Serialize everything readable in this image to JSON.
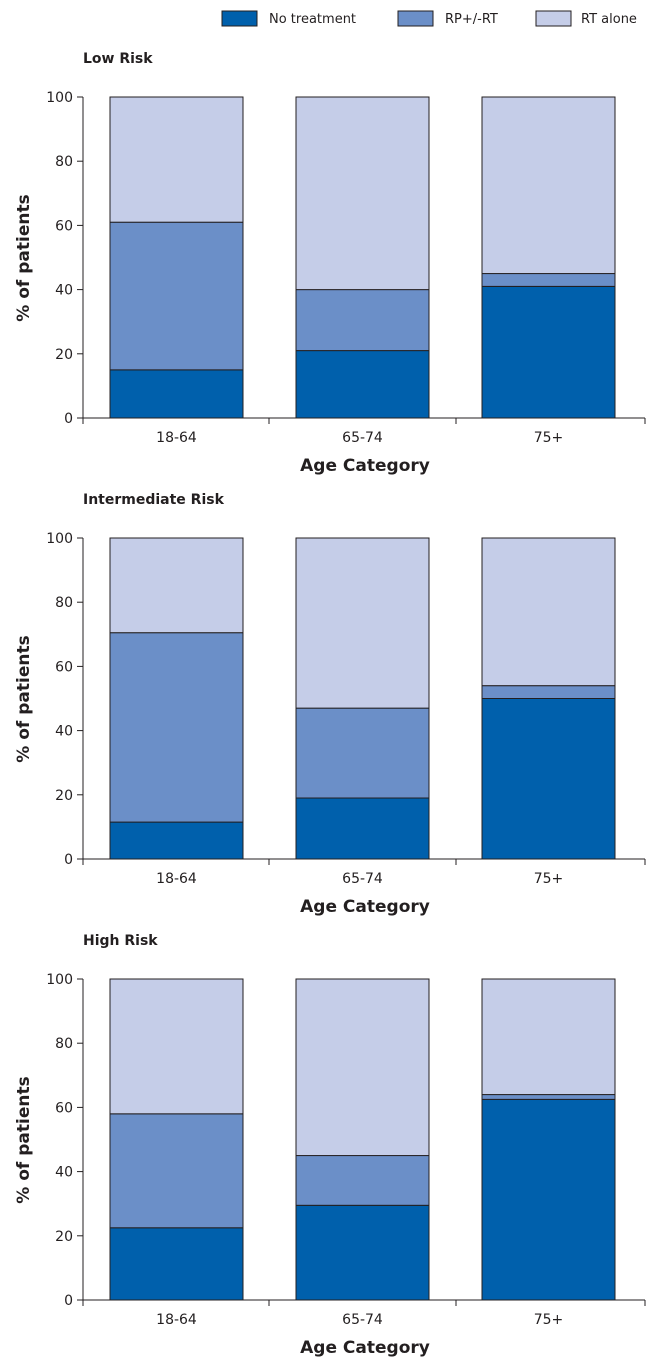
{
  "legend": [
    {
      "label": "No treatment",
      "color": "#0060ac"
    },
    {
      "label": "RP+/-RT",
      "color": "#6b8fc8"
    },
    {
      "label": "RT alone",
      "color": "#c5cde8"
    }
  ],
  "chart_data": [
    {
      "type": "bar",
      "stacked": true,
      "title": "Low Risk",
      "xlabel": "Age Category",
      "ylabel": "% of patients",
      "categories": [
        "18-64",
        "65-74",
        "75+"
      ],
      "ylim": [
        0,
        100
      ],
      "yticks": [
        0,
        20,
        40,
        60,
        80,
        100
      ],
      "series": [
        {
          "name": "No treatment",
          "values": [
            15,
            21,
            41
          ]
        },
        {
          "name": "RP+/-RT",
          "values": [
            46,
            19,
            4
          ]
        },
        {
          "name": "RT alone",
          "values": [
            39,
            60,
            55
          ]
        }
      ]
    },
    {
      "type": "bar",
      "stacked": true,
      "title": "Intermediate Risk",
      "xlabel": "Age Category",
      "ylabel": "% of patients",
      "categories": [
        "18-64",
        "65-74",
        "75+"
      ],
      "ylim": [
        0,
        100
      ],
      "yticks": [
        0,
        20,
        40,
        60,
        80,
        100
      ],
      "series": [
        {
          "name": "No treatment",
          "values": [
            11.5,
            19,
            50
          ]
        },
        {
          "name": "RP+/-RT",
          "values": [
            59,
            28,
            4
          ]
        },
        {
          "name": "RT alone",
          "values": [
            29.5,
            53,
            46
          ]
        }
      ]
    },
    {
      "type": "bar",
      "stacked": true,
      "title": "High Risk",
      "xlabel": "Age Category",
      "ylabel": "% of patients",
      "categories": [
        "18-64",
        "65-74",
        "75+"
      ],
      "ylim": [
        0,
        100
      ],
      "yticks": [
        0,
        20,
        40,
        60,
        80,
        100
      ],
      "series": [
        {
          "name": "No treatment",
          "values": [
            22.5,
            29.5,
            62.5
          ]
        },
        {
          "name": "RP+/-RT",
          "values": [
            35.5,
            15.5,
            1.5
          ]
        },
        {
          "name": "RT alone",
          "values": [
            42,
            55,
            36
          ]
        }
      ]
    }
  ]
}
